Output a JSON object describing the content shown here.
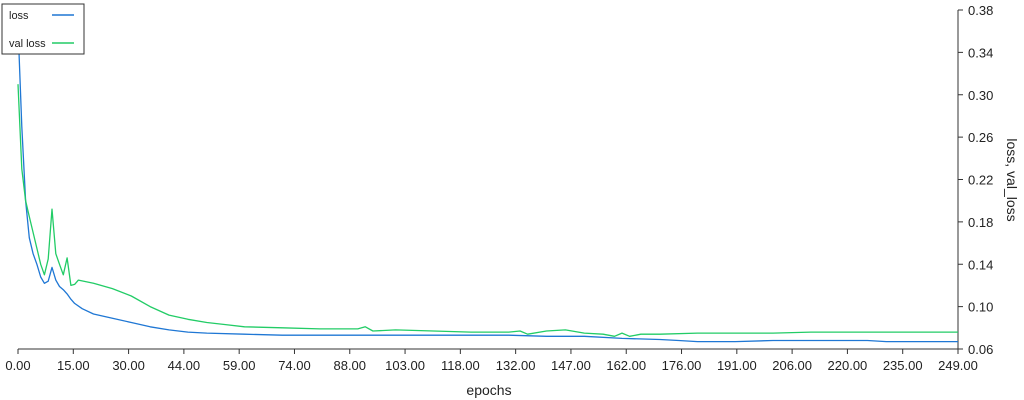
{
  "chart_data": {
    "type": "line",
    "title": "",
    "xlabel": "epochs",
    "ylabel": "loss, val_loss",
    "xlim": [
      0,
      249
    ],
    "ylim": [
      0.06,
      0.38
    ],
    "x_tick_labels": [
      "0.00",
      "15.00",
      "30.00",
      "44.00",
      "59.00",
      "74.00",
      "88.00",
      "103.00",
      "118.00",
      "132.00",
      "147.00",
      "162.00",
      "176.00",
      "191.00",
      "206.00",
      "220.00",
      "235.00",
      "249.00"
    ],
    "y_ticks": [
      0.06,
      0.1,
      0.14,
      0.18,
      0.22,
      0.26,
      0.3,
      0.34,
      0.38
    ],
    "y_tick_labels": [
      "0.06",
      "0.10",
      "0.14",
      "0.18",
      "0.22",
      "0.26",
      "0.30",
      "0.34",
      "0.38"
    ],
    "y_axis_side": "right",
    "grid": false,
    "legend_position": "top-left",
    "series": [
      {
        "name": "loss",
        "color": "#1f77d4",
        "points": [
          [
            0,
            0.365
          ],
          [
            1,
            0.27
          ],
          [
            2,
            0.2
          ],
          [
            3,
            0.165
          ],
          [
            4,
            0.15
          ],
          [
            5,
            0.14
          ],
          [
            6,
            0.128
          ],
          [
            7,
            0.122
          ],
          [
            8,
            0.124
          ],
          [
            9,
            0.137
          ],
          [
            10,
            0.125
          ],
          [
            11,
            0.119
          ],
          [
            12,
            0.116
          ],
          [
            13,
            0.112
          ],
          [
            14,
            0.107
          ],
          [
            15,
            0.103
          ],
          [
            17,
            0.098
          ],
          [
            20,
            0.093
          ],
          [
            25,
            0.089
          ],
          [
            30,
            0.085
          ],
          [
            35,
            0.081
          ],
          [
            40,
            0.078
          ],
          [
            45,
            0.076
          ],
          [
            50,
            0.075
          ],
          [
            60,
            0.074
          ],
          [
            70,
            0.073
          ],
          [
            80,
            0.073
          ],
          [
            90,
            0.073
          ],
          [
            100,
            0.073
          ],
          [
            110,
            0.073
          ],
          [
            120,
            0.073
          ],
          [
            130,
            0.073
          ],
          [
            140,
            0.072
          ],
          [
            150,
            0.072
          ],
          [
            160,
            0.07
          ],
          [
            170,
            0.069
          ],
          [
            175,
            0.068
          ],
          [
            180,
            0.067
          ],
          [
            185,
            0.067
          ],
          [
            190,
            0.067
          ],
          [
            200,
            0.068
          ],
          [
            210,
            0.068
          ],
          [
            220,
            0.068
          ],
          [
            225,
            0.068
          ],
          [
            230,
            0.067
          ],
          [
            240,
            0.067
          ],
          [
            249,
            0.067
          ]
        ]
      },
      {
        "name": "val loss",
        "color": "#22cc66",
        "points": [
          [
            0,
            0.31
          ],
          [
            1,
            0.23
          ],
          [
            2,
            0.2
          ],
          [
            3,
            0.185
          ],
          [
            4,
            0.17
          ],
          [
            5,
            0.155
          ],
          [
            6,
            0.14
          ],
          [
            7,
            0.13
          ],
          [
            8,
            0.145
          ],
          [
            9,
            0.192
          ],
          [
            10,
            0.15
          ],
          [
            11,
            0.14
          ],
          [
            12,
            0.13
          ],
          [
            13,
            0.146
          ],
          [
            14,
            0.12
          ],
          [
            15,
            0.121
          ],
          [
            16,
            0.125
          ],
          [
            20,
            0.122
          ],
          [
            25,
            0.117
          ],
          [
            30,
            0.11
          ],
          [
            35,
            0.1
          ],
          [
            40,
            0.092
          ],
          [
            45,
            0.088
          ],
          [
            50,
            0.085
          ],
          [
            55,
            0.083
          ],
          [
            60,
            0.081
          ],
          [
            70,
            0.08
          ],
          [
            80,
            0.079
          ],
          [
            90,
            0.079
          ],
          [
            92,
            0.081
          ],
          [
            94,
            0.077
          ],
          [
            100,
            0.078
          ],
          [
            110,
            0.077
          ],
          [
            120,
            0.076
          ],
          [
            130,
            0.076
          ],
          [
            133,
            0.077
          ],
          [
            135,
            0.074
          ],
          [
            140,
            0.077
          ],
          [
            145,
            0.078
          ],
          [
            150,
            0.075
          ],
          [
            155,
            0.074
          ],
          [
            158,
            0.072
          ],
          [
            160,
            0.075
          ],
          [
            162,
            0.072
          ],
          [
            165,
            0.074
          ],
          [
            170,
            0.074
          ],
          [
            180,
            0.075
          ],
          [
            190,
            0.075
          ],
          [
            200,
            0.075
          ],
          [
            210,
            0.076
          ],
          [
            220,
            0.076
          ],
          [
            230,
            0.076
          ],
          [
            240,
            0.076
          ],
          [
            249,
            0.076
          ]
        ]
      }
    ]
  }
}
